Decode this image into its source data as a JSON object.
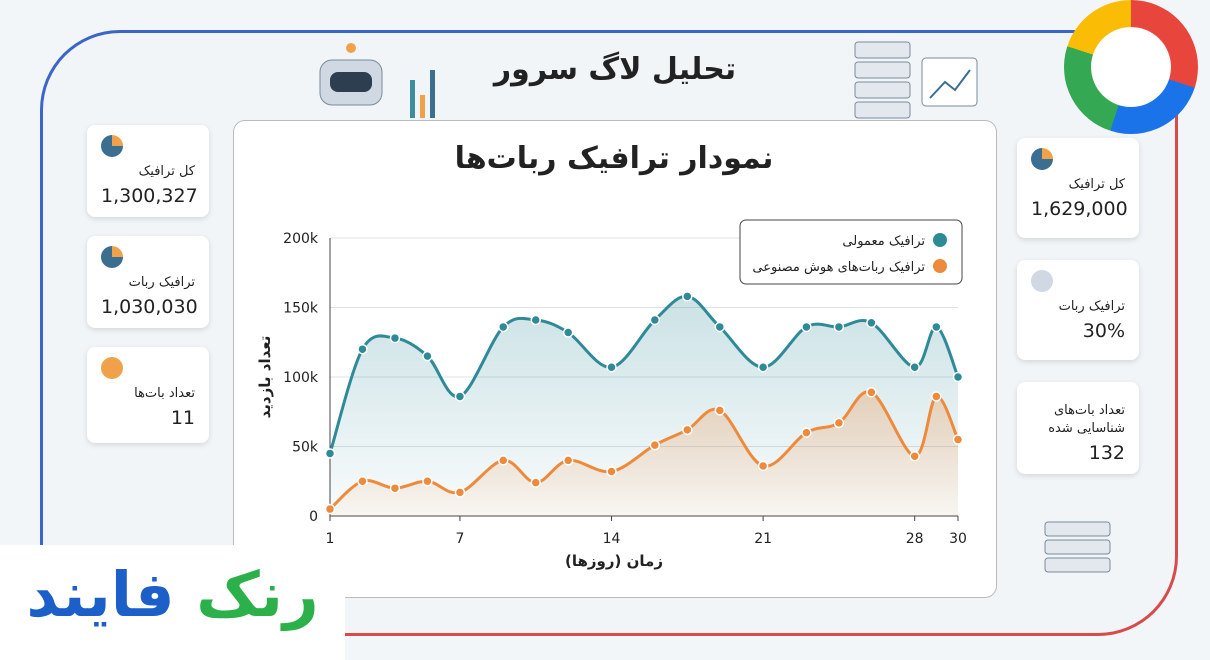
{
  "header": {
    "title": "تحلیل لاگ سرور"
  },
  "left_cards": [
    {
      "label": "کل ترافیک",
      "value": "1,300,327"
    },
    {
      "label": "ترافیک ربات",
      "value": "1,030,030"
    },
    {
      "label": "تعداد بات‌ها",
      "value": "11"
    }
  ],
  "right_cards": [
    {
      "label": "کل ترافیک",
      "value": "1,629,000"
    },
    {
      "label": "ترافیک ربات",
      "value": "30%"
    },
    {
      "label": "تعداد بات‌های شناسایی شده",
      "value": "132"
    }
  ],
  "brand": {
    "word1": "رنک",
    "word2": "فایند"
  },
  "chart_data": {
    "type": "line",
    "title": "نمودار ترافیک ربات‌ها",
    "x_label": "زمان (روزها)",
    "y_label": "تعداد بازدید",
    "x": [
      1,
      2.5,
      4,
      5.5,
      7,
      9,
      10.5,
      12,
      14,
      16,
      17.5,
      19,
      21,
      23,
      24.5,
      26,
      28,
      29,
      30
    ],
    "series": [
      {
        "name": "ترافیک معمولی",
        "color": "#2f8a98",
        "values": [
          45000,
          120000,
          128000,
          115000,
          86000,
          136000,
          141000,
          132000,
          107000,
          141000,
          158000,
          136000,
          107000,
          136000,
          136000,
          139000,
          107000,
          136000,
          100000
        ]
      },
      {
        "name": "ترافیک ربات‌های هوش مصنوعی",
        "color": "#ee8a3c",
        "values": [
          5000,
          25000,
          20000,
          25000,
          17000,
          40000,
          24000,
          40000,
          32000,
          51000,
          62000,
          76000,
          36000,
          60000,
          67000,
          89000,
          43000,
          86000,
          55000
        ]
      }
    ],
    "xlim": [
      1,
      30
    ],
    "xticks": [
      1,
      7,
      14,
      21,
      28,
      30
    ],
    "ylim": [
      0,
      200000
    ],
    "yticks": [
      0,
      {
        "value": 50000,
        "label": "50k"
      },
      {
        "value": 100000,
        "label": "100k"
      },
      {
        "value": 150000,
        "label": "150k"
      },
      {
        "value": 200000,
        "label": "200k"
      }
    ],
    "grid": true,
    "legend": "top-right"
  }
}
